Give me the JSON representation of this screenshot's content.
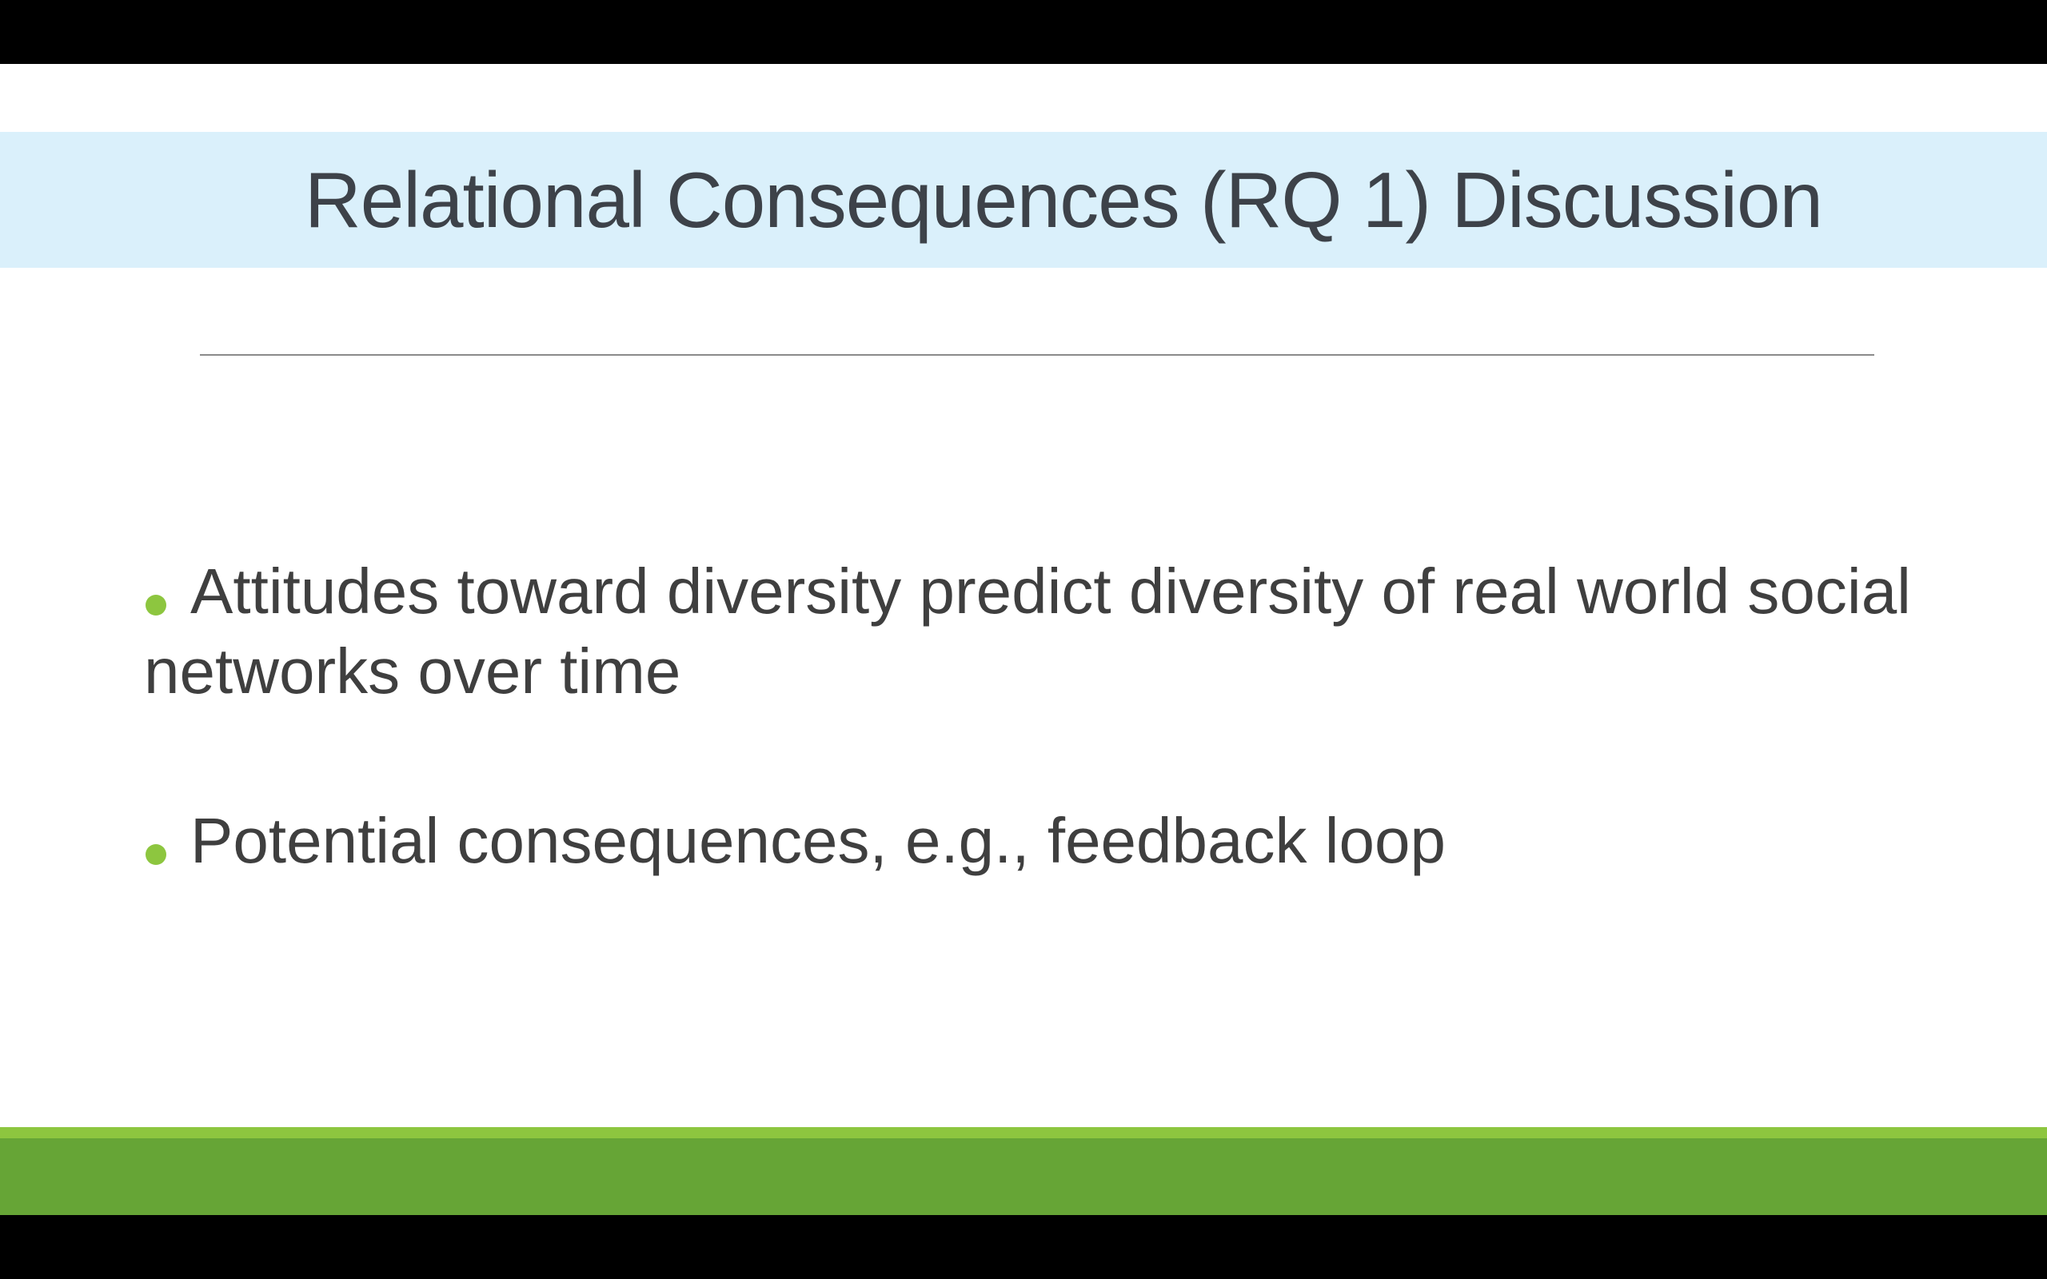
{
  "slide": {
    "title": "Relational Consequences (RQ 1) Discussion",
    "bullets": [
      {
        "text": "Attitudes toward diversity predict diversity of real world social networks over time"
      },
      {
        "text": "Potential consequences, e.g., feedback loop"
      }
    ]
  },
  "colors": {
    "title_band": "#daf0fb",
    "title_text": "#3d4249",
    "body_text": "#3f3f3f",
    "bullet": "#8dc63f",
    "footer_light": "#8dc63f",
    "footer_dark": "#66a536",
    "divider": "#8a8a8a",
    "letterbox": "#000000"
  }
}
